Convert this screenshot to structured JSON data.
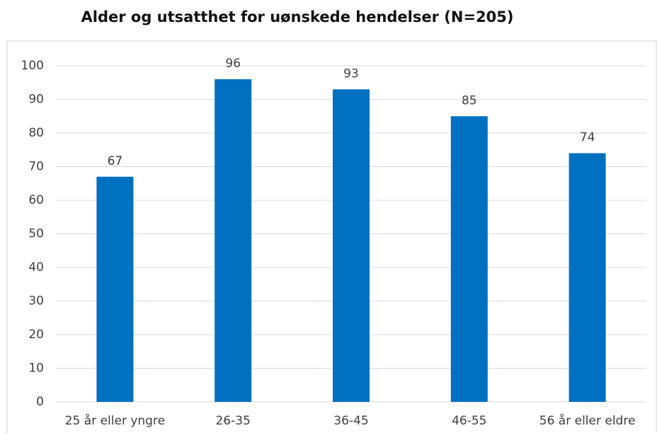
{
  "chart_data": {
    "type": "bar",
    "title": "Alder og utsatthet for uønskede hendelser (N=205)",
    "categories": [
      "25 år eller yngre",
      "26-35",
      "36-45",
      "46-55",
      "56 år eller eldre"
    ],
    "values": [
      67,
      96,
      93,
      85,
      74
    ],
    "color": "#0070c0",
    "ylim": [
      0,
      100
    ],
    "yticks": [
      0,
      10,
      20,
      30,
      40,
      50,
      60,
      70,
      80,
      90,
      100
    ],
    "grid": true
  }
}
